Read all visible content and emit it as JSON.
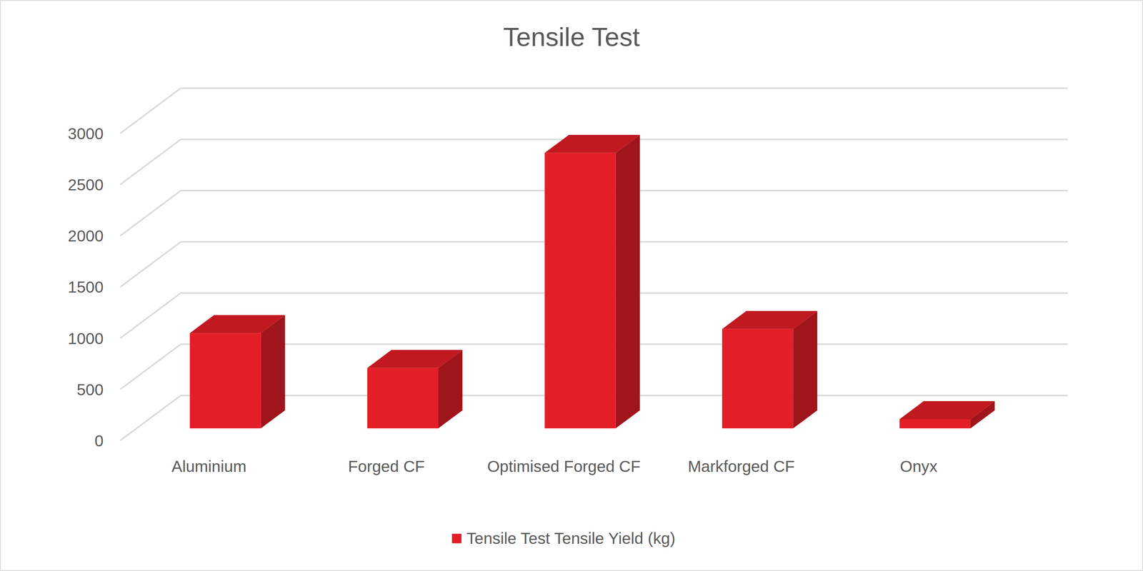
{
  "chart_data": {
    "type": "bar",
    "title": "Tensile Test",
    "categories": [
      "Aluminium",
      "Forged CF",
      "Optimised Forged CF",
      "Markforged CF",
      "Onyx"
    ],
    "series": [
      {
        "name": "Tensile Test Tensile Yield (kg)",
        "color": "#e41e26",
        "values": [
          930,
          590,
          2690,
          970,
          90
        ]
      }
    ],
    "ylim": [
      0,
      3000
    ],
    "yticks": [
      0,
      500,
      1000,
      1500,
      2000,
      2500,
      3000
    ],
    "grid": true,
    "legend": "bottom"
  }
}
